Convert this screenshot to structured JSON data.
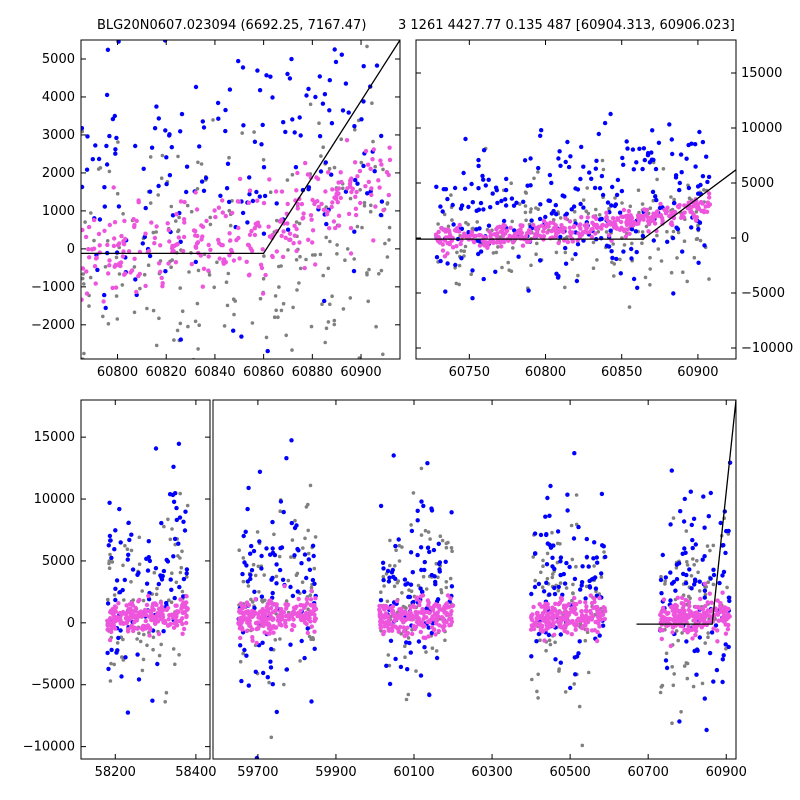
{
  "title_left": "BLG20N0607.023094 (6692.25, 7167.47)",
  "title_right": "3 1261 4427.77 0.135 487 [60904.313, 60906.023]",
  "colors": {
    "grey": "#808080",
    "blue": "#0000ff",
    "pink": "#ee55dd",
    "model": "#000000"
  },
  "chart_data": [
    {
      "id": "zoom",
      "type": "scatter",
      "xlim": [
        60785,
        60916
      ],
      "ylim": [
        -2900,
        5500
      ],
      "xticks": [
        60800,
        60820,
        60840,
        60860,
        60880,
        60900
      ],
      "yticks": [
        -2000,
        -1000,
        0,
        1000,
        2000,
        3000,
        4000,
        5000
      ],
      "ytick_side": "left",
      "model": {
        "x": [
          60785,
          60860,
          60916
        ],
        "y": [
          -120,
          -120,
          5500
        ]
      },
      "series": [
        {
          "name": "grey",
          "n": 220,
          "xr": [
            60785,
            60912
          ],
          "base": [
            -300,
            900
          ],
          "spread": 1600
        },
        {
          "name": "blue",
          "n": 180,
          "xr": [
            60785,
            60912
          ],
          "base": [
            1500,
            3500
          ],
          "spread": 1700
        },
        {
          "name": "pink",
          "n": 300,
          "xr": [
            60785,
            60912
          ],
          "base": [
            -250,
            2000
          ],
          "spread": 600
        }
      ]
    },
    {
      "id": "season",
      "type": "scatter",
      "xlim": [
        60715,
        60925
      ],
      "ylim": [
        -11000,
        18000
      ],
      "xticks": [
        60750,
        60800,
        60850,
        60900
      ],
      "yticks": [
        -10000,
        -5000,
        0,
        5000,
        10000,
        15000
      ],
      "ytick_side": "right",
      "model": {
        "x": [
          60715,
          60864,
          60925
        ],
        "y": [
          -100,
          -100,
          6200
        ]
      },
      "series": [
        {
          "name": "grey",
          "n": 200,
          "xr": [
            60728,
            60908
          ],
          "base": [
            200,
            1500
          ],
          "spread": 2500
        },
        {
          "name": "blue",
          "n": 260,
          "xr": [
            60728,
            60908
          ],
          "base": [
            1500,
            5000
          ],
          "spread": 3500
        },
        {
          "name": "pink",
          "n": 380,
          "xr": [
            60728,
            60908
          ],
          "base": [
            0,
            3000
          ],
          "spread": 500
        }
      ]
    },
    {
      "id": "full",
      "type": "scatter",
      "ylim": [
        -11000,
        18000
      ],
      "yticks": [
        -10000,
        -5000,
        0,
        5000,
        10000,
        15000
      ],
      "ytick_side": "left",
      "segments": [
        {
          "xlim": [
            58115,
            58435
          ],
          "xticks": [
            58200,
            58400
          ]
        },
        {
          "xlim": [
            59585,
            60925
          ],
          "xticks": [
            59700,
            59900,
            60100,
            60300,
            60500,
            60700,
            60900
          ]
        }
      ],
      "clusters": [
        [
          58180,
          58380
        ],
        [
          59650,
          59850
        ],
        [
          60010,
          60200
        ],
        [
          60400,
          60590
        ],
        [
          60730,
          60910
        ]
      ],
      "model": {
        "x": [
          60670,
          60864,
          60925
        ],
        "y": [
          -100,
          -100,
          18000
        ]
      },
      "series": [
        {
          "name": "grey",
          "n": 90,
          "base": [
            1000,
            2500
          ],
          "spread": 3500
        },
        {
          "name": "blue",
          "n": 100,
          "base": [
            2500,
            4500
          ],
          "spread": 4000
        },
        {
          "name": "pink",
          "n": 220,
          "base": [
            300,
            800
          ],
          "spread": 700
        }
      ]
    }
  ]
}
